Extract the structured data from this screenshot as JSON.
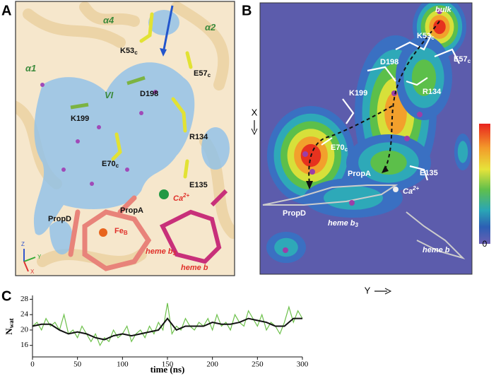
{
  "panel_a": {
    "letter": "A",
    "labels": [
      {
        "text": "α4"
      },
      {
        "text": "α2"
      },
      {
        "text": "α1"
      },
      {
        "text": "VI"
      },
      {
        "text": "K53",
        "sub": "c"
      },
      {
        "text": "E57",
        "sub": "c"
      },
      {
        "text": "D198"
      },
      {
        "text": "K199"
      },
      {
        "text": "R134"
      },
      {
        "text": "E70",
        "sub": "c"
      },
      {
        "text": "E135"
      },
      {
        "text": "Ca",
        "sup": "2+"
      },
      {
        "text": "PropA"
      },
      {
        "text": "PropD"
      },
      {
        "text": "Fe",
        "sub": "B"
      },
      {
        "text": "heme b",
        "sub": "3"
      },
      {
        "text": "heme b"
      },
      {
        "text": "Z"
      },
      {
        "text": "Y"
      },
      {
        "text": "X"
      }
    ]
  },
  "panel_b": {
    "letter": "B",
    "labels": [
      {
        "text": "bulk"
      },
      {
        "text": "K53",
        "sub": "c"
      },
      {
        "text": "E57",
        "sub": "c"
      },
      {
        "text": "D198"
      },
      {
        "text": "R134"
      },
      {
        "text": "K199"
      },
      {
        "text": "E70",
        "sub": "c"
      },
      {
        "text": "E135"
      },
      {
        "text": "PropA"
      },
      {
        "text": "Ca",
        "sup": "2+"
      },
      {
        "text": "PropD"
      },
      {
        "text": "heme b",
        "sub": "3"
      },
      {
        "text": "heme b"
      }
    ],
    "x_axis": "Y",
    "y_axis": "X",
    "colorbar_min": "0"
  },
  "chart_data": {
    "letter": "C",
    "type": "line",
    "xlabel": "time (ns)",
    "ylabel": {
      "text": "N",
      "sub": "wat"
    },
    "xlim": [
      0,
      300
    ],
    "xticks": [
      0,
      50,
      100,
      150,
      200,
      250,
      300
    ],
    "ylim": [
      13,
      29
    ],
    "yticks": [
      16,
      20,
      24,
      28
    ],
    "series": [
      {
        "color": "#6cc04a",
        "x": [
          0,
          5,
          10,
          15,
          20,
          25,
          30,
          35,
          40,
          45,
          50,
          55,
          60,
          65,
          70,
          75,
          80,
          85,
          90,
          95,
          100,
          105,
          110,
          115,
          120,
          125,
          130,
          135,
          140,
          145,
          150,
          155,
          160,
          165,
          170,
          175,
          180,
          185,
          190,
          195,
          200,
          205,
          210,
          215,
          220,
          225,
          230,
          235,
          240,
          245,
          250,
          255,
          260,
          265,
          270,
          275,
          280,
          285,
          290,
          295,
          300
        ],
        "values": [
          21,
          22,
          20,
          23,
          21,
          22,
          20,
          24,
          19,
          20,
          18,
          21,
          19,
          17,
          19,
          16,
          18,
          17,
          20,
          18,
          19,
          21,
          17,
          19,
          20,
          18,
          21,
          19,
          22,
          20,
          27,
          19,
          21,
          20,
          23,
          21,
          20,
          22,
          21,
          23,
          20,
          24,
          21,
          22,
          20,
          24,
          22,
          21,
          25,
          23,
          21,
          24,
          20,
          22,
          21,
          19,
          22,
          26,
          22,
          25,
          23
        ]
      },
      {
        "color": "#111111",
        "x": [
          0,
          10,
          20,
          30,
          40,
          50,
          60,
          70,
          80,
          90,
          100,
          110,
          120,
          130,
          140,
          150,
          160,
          170,
          180,
          190,
          200,
          210,
          220,
          230,
          240,
          250,
          260,
          270,
          280,
          290,
          300
        ],
        "values": [
          21,
          21.5,
          21.5,
          20,
          19,
          19.5,
          19,
          18,
          17.5,
          18.5,
          19,
          18.5,
          19,
          19.5,
          20,
          23,
          20,
          21,
          21,
          21,
          22,
          21.5,
          21.5,
          22,
          23,
          22.5,
          22,
          21,
          21,
          23,
          23
        ]
      }
    ]
  }
}
